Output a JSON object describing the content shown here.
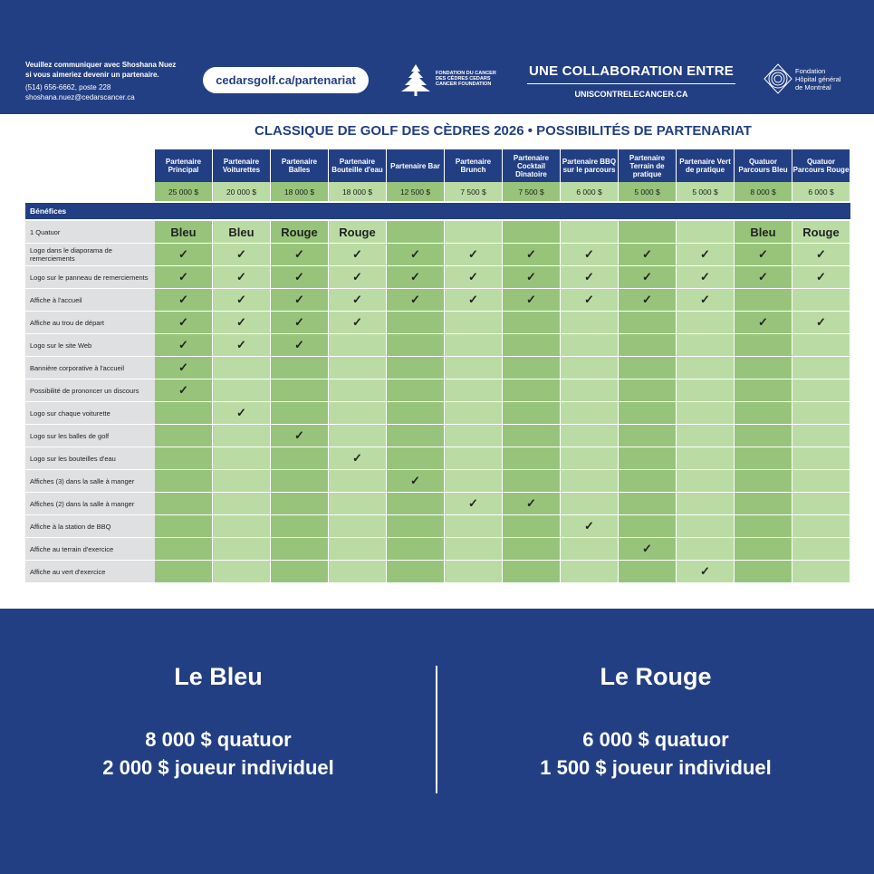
{
  "header": {
    "contact": [
      "Veuillez communiquer avec Shoshana Nuez",
      "si vous aimeriez devenir un partenaire.",
      "(514) 656-6662, poste 228",
      "shoshana.nuez@cedarscancer.ca"
    ],
    "url": "cedarsgolf.ca/partenariat",
    "cedars_logo": "FONDATION DU CANCER DES CÈDRES CEDARS CANCER FOUNDATION",
    "collab_title": "UNE COLLABORATION ENTRE",
    "collab_url": "UNISCONTRELECANCER.CA",
    "hgm_logo": [
      "Fondation",
      "Hôpital général",
      "de Montréal"
    ]
  },
  "title": "CLASSIQUE DE GOLF DES CÈDRES 2026 • POSSIBILITÉS DE PARTENARIAT",
  "columns": [
    {
      "name": "Partenaire Principal",
      "price": "25 000 $"
    },
    {
      "name": "Partenaire Voiturettes",
      "price": "20 000 $"
    },
    {
      "name": "Partenaire Balles",
      "price": "18 000 $"
    },
    {
      "name": "Partenaire Bouteille d'eau",
      "price": "18 000 $"
    },
    {
      "name": "Partenaire Bar",
      "price": "12 500 $"
    },
    {
      "name": "Partenaire Brunch",
      "price": "7 500 $"
    },
    {
      "name": "Partenaire Cocktail Dînatoire",
      "price": "7 500 $"
    },
    {
      "name": "Partenaire BBQ sur le parcours",
      "price": "6 000 $"
    },
    {
      "name": "Partenaire Terrain de pratique",
      "price": "5 000 $"
    },
    {
      "name": "Partenaire Vert de pratique",
      "price": "5 000 $"
    },
    {
      "name": "Quatuor Parcours Bleu",
      "price": "8 000 $"
    },
    {
      "name": "Quatuor Parcours Rouge",
      "price": "6 000 $"
    }
  ],
  "benefits_label": "Bénéfices",
  "check": "✓",
  "rows": [
    {
      "label": "1 Quatuor",
      "values": [
        "Bleu",
        "Bleu",
        "Rouge",
        "Rouge",
        "",
        "",
        "",
        "",
        "",
        "",
        "Bleu",
        "Rouge"
      ]
    },
    {
      "label": "Logo dans le diaporama de remerciements",
      "values": [
        1,
        1,
        1,
        1,
        1,
        1,
        1,
        1,
        1,
        1,
        1,
        1
      ]
    },
    {
      "label": "Logo sur le panneau de remerciements",
      "values": [
        1,
        1,
        1,
        1,
        1,
        1,
        1,
        1,
        1,
        1,
        1,
        1
      ]
    },
    {
      "label": "Affiche à l'accueil",
      "values": [
        1,
        1,
        1,
        1,
        1,
        1,
        1,
        1,
        1,
        1,
        0,
        0
      ]
    },
    {
      "label": "Affiche au trou de départ",
      "values": [
        1,
        1,
        1,
        1,
        0,
        0,
        0,
        0,
        0,
        0,
        1,
        1
      ]
    },
    {
      "label": "Logo sur le site Web",
      "values": [
        1,
        1,
        1,
        0,
        0,
        0,
        0,
        0,
        0,
        0,
        0,
        0
      ]
    },
    {
      "label": "Bannière corporative à l'accueil",
      "values": [
        1,
        0,
        0,
        0,
        0,
        0,
        0,
        0,
        0,
        0,
        0,
        0
      ]
    },
    {
      "label": "Possibilité de prononcer un discours",
      "values": [
        1,
        0,
        0,
        0,
        0,
        0,
        0,
        0,
        0,
        0,
        0,
        0
      ]
    },
    {
      "label": "Logo sur chaque voiturette",
      "values": [
        0,
        1,
        0,
        0,
        0,
        0,
        0,
        0,
        0,
        0,
        0,
        0
      ]
    },
    {
      "label": "Logo sur les balles de golf",
      "values": [
        0,
        0,
        1,
        0,
        0,
        0,
        0,
        0,
        0,
        0,
        0,
        0
      ]
    },
    {
      "label": "Logo sur les bouteilles d'eau",
      "values": [
        0,
        0,
        0,
        1,
        0,
        0,
        0,
        0,
        0,
        0,
        0,
        0
      ]
    },
    {
      "label": "Affiches (3) dans la salle à manger",
      "values": [
        0,
        0,
        0,
        0,
        1,
        0,
        0,
        0,
        0,
        0,
        0,
        0
      ]
    },
    {
      "label": "Affiches (2) dans la salle à manger",
      "values": [
        0,
        0,
        0,
        0,
        0,
        1,
        1,
        0,
        0,
        0,
        0,
        0
      ]
    },
    {
      "label": "Affiche à la station de BBQ",
      "values": [
        0,
        0,
        0,
        0,
        0,
        0,
        0,
        1,
        0,
        0,
        0,
        0
      ]
    },
    {
      "label": "Affiche au terrain d'exercice",
      "values": [
        0,
        0,
        0,
        0,
        0,
        0,
        0,
        0,
        1,
        0,
        0,
        0
      ]
    },
    {
      "label": "Affiche au vert d'exercice",
      "values": [
        0,
        0,
        0,
        0,
        0,
        0,
        0,
        0,
        0,
        1,
        0,
        0
      ]
    }
  ],
  "footer": {
    "bleu": {
      "title": "Le Bleu",
      "line1": "8 000 $ quatuor",
      "line2": "2 000 $ joueur individuel"
    },
    "rouge": {
      "title": "Le Rouge",
      "line1": "6 000 $ quatuor",
      "line2": "1 500 $ joueur individuel"
    }
  }
}
